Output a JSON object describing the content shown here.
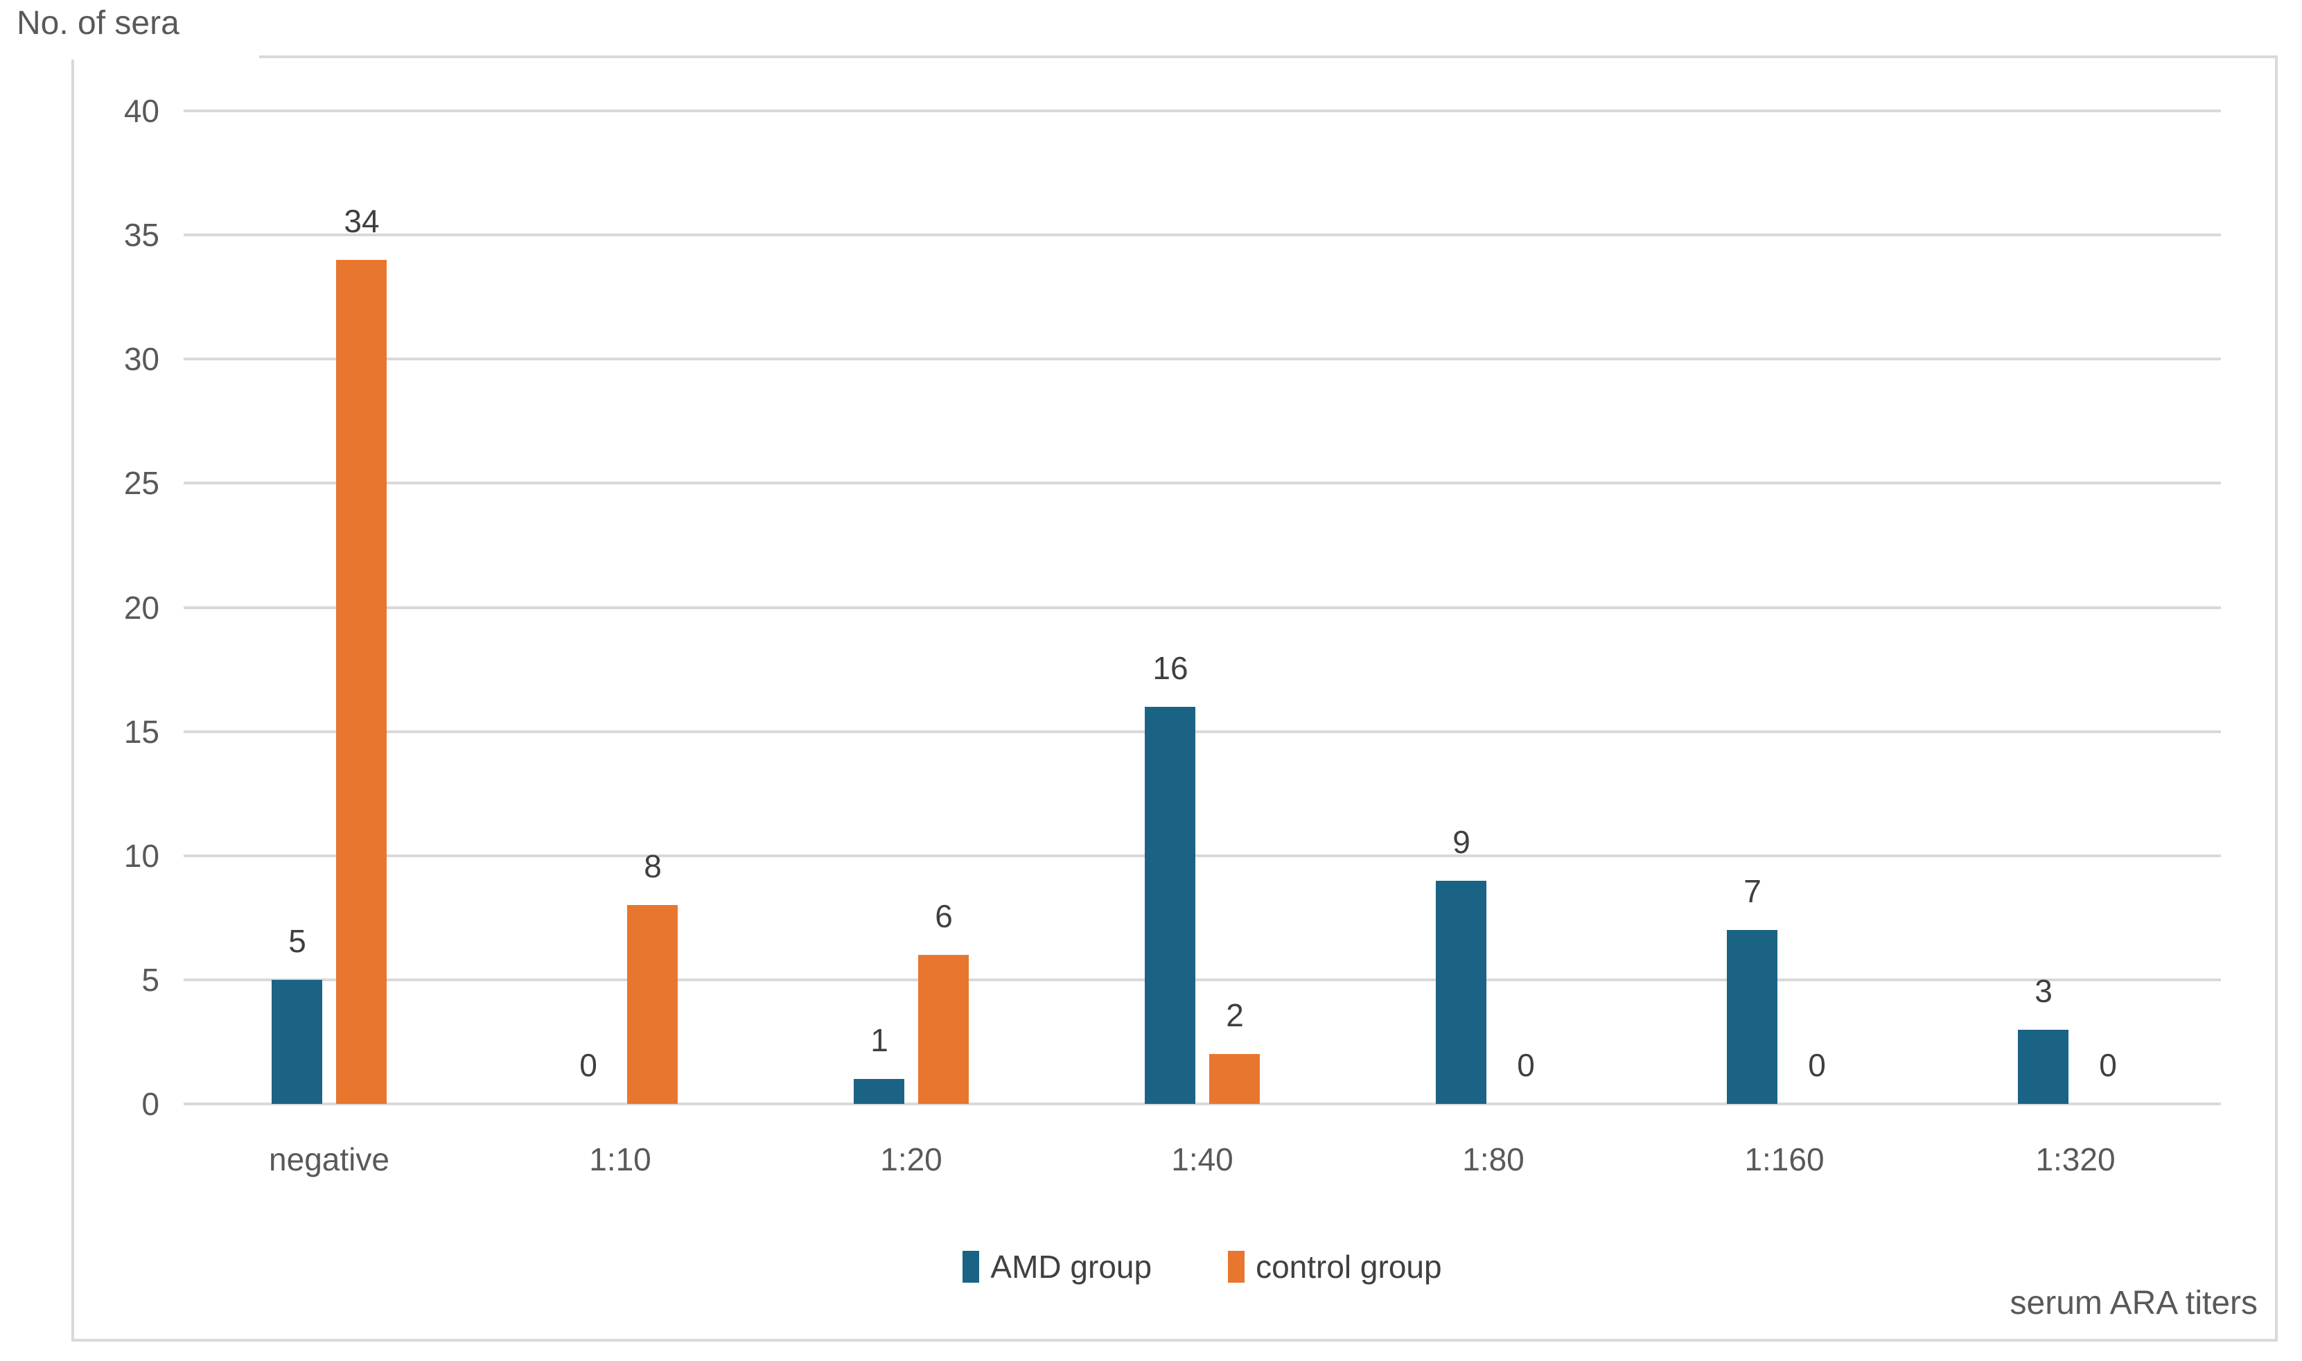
{
  "chart_data": {
    "type": "bar",
    "title": "No. of sera",
    "xlabel": "serum ARA titers",
    "categories": [
      "negative",
      "1:10",
      "1:20",
      "1:40",
      "1:80",
      "1:160",
      "1:320"
    ],
    "series": [
      {
        "name": "AMD group",
        "color": "#1B6385",
        "values": [
          5,
          0,
          1,
          16,
          9,
          7,
          3
        ]
      },
      {
        "name": "control group",
        "color": "#E8762F",
        "values": [
          34,
          8,
          6,
          2,
          0,
          0,
          0
        ]
      }
    ],
    "ylim": [
      0,
      40
    ],
    "ytick_step": 5,
    "grid": "horizontal-only",
    "legend_position": "bottom-center",
    "data_labels": "outside-end",
    "colors": {
      "gridline": "#D9D9D9",
      "frame_border": "#D9D9D9",
      "axis_text": "#595959",
      "data_label_text": "#3F3F3F",
      "legend_text": "#404040"
    }
  }
}
